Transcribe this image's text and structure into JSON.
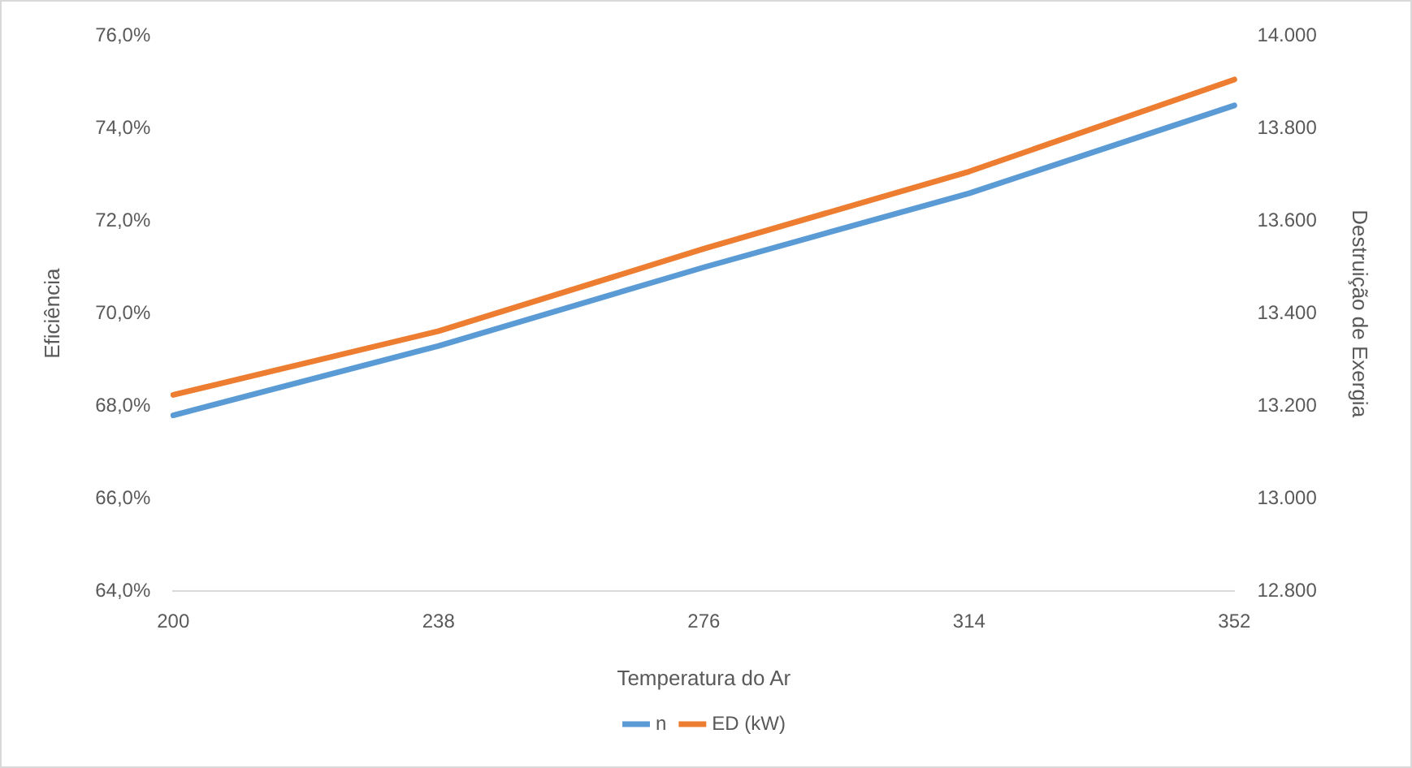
{
  "chart_data": {
    "type": "line",
    "xlabel": "Temperatura do Ar",
    "ylabel": "Eficiência",
    "y2label": "Destruição de Exergia",
    "categories": [
      "200",
      "238",
      "276",
      "314",
      "352"
    ],
    "series": [
      {
        "name": "n",
        "color": "#5b9bd5",
        "values": [
          67.8,
          69.3,
          71.0,
          72.6,
          74.5
        ]
      },
      {
        "name": "ED (kW)",
        "color": "#ed7d31",
        "axis": "y2",
        "values": [
          13224,
          13362,
          13540,
          13707,
          13906
        ]
      }
    ],
    "ylim": [
      64,
      76
    ],
    "yticks": [
      {
        "value": 64,
        "label": "64,0%"
      },
      {
        "value": 66,
        "label": "66,0%"
      },
      {
        "value": 68,
        "label": "68,0%"
      },
      {
        "value": 70,
        "label": "70,0%"
      },
      {
        "value": 72,
        "label": "72,0%"
      },
      {
        "value": 74,
        "label": "74,0%"
      },
      {
        "value": 76,
        "label": "76,0%"
      }
    ],
    "y2lim": [
      12800,
      14000
    ],
    "y2ticks": [
      {
        "value": 12800,
        "label": "12.800"
      },
      {
        "value": 13000,
        "label": "13.000"
      },
      {
        "value": 13200,
        "label": "13.200"
      },
      {
        "value": 13400,
        "label": "13.400"
      },
      {
        "value": 13600,
        "label": "13.600"
      },
      {
        "value": 13800,
        "label": "13.800"
      },
      {
        "value": 14000,
        "label": "14.000"
      }
    ],
    "grid": false,
    "legend": "bottom",
    "marker": "none",
    "line_style": "solid"
  }
}
